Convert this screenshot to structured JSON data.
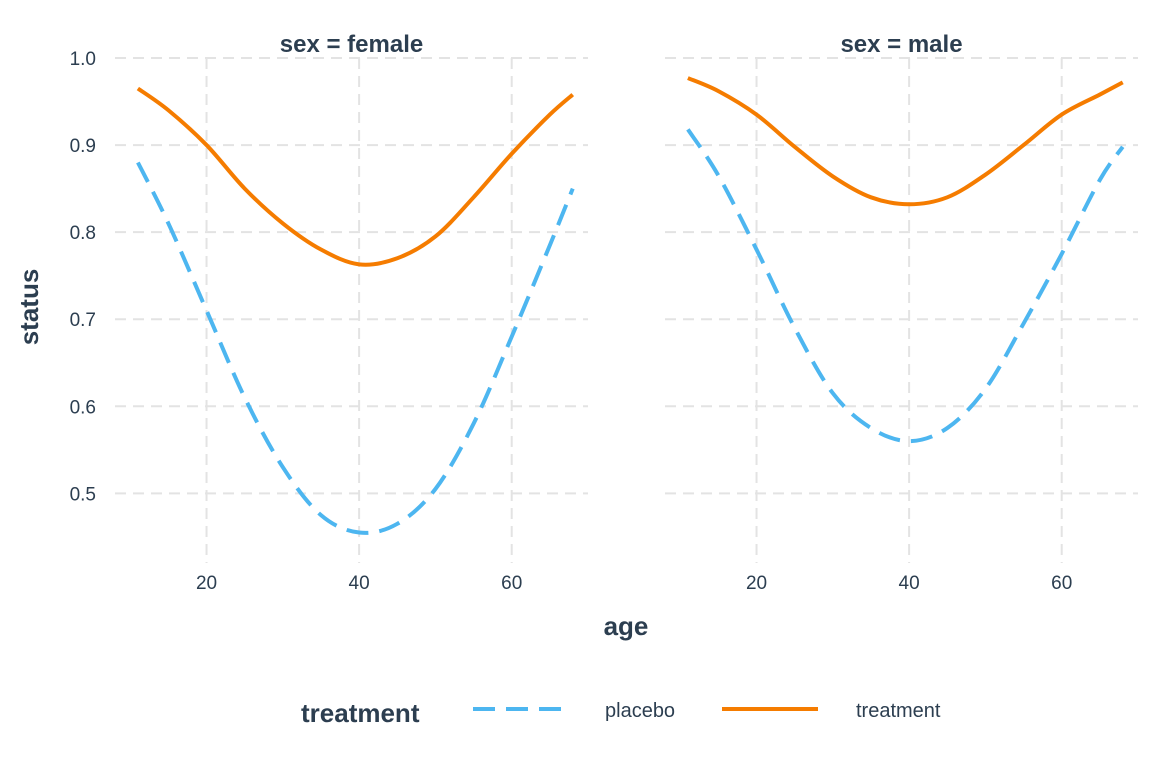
{
  "chart_data": {
    "type": "line",
    "facet_variable": "sex",
    "xlabel": "age",
    "ylabel": "status",
    "xlim": [
      8,
      70
    ],
    "ylim": [
      0.42,
      1.0
    ],
    "x_ticks": [
      20,
      40,
      60
    ],
    "y_ticks": [
      0.5,
      0.6,
      0.7,
      0.8,
      0.9,
      1.0
    ],
    "y_tick_labels": [
      "0.5",
      "0.6",
      "0.7",
      "0.8",
      "0.9",
      "1.0"
    ],
    "grid": true,
    "legend": {
      "title": "treatment",
      "position": "bottom",
      "entries": [
        {
          "label": "placebo",
          "color": "#4db6f0",
          "dash": "dashed"
        },
        {
          "label": "treatment",
          "color": "#f57c00",
          "dash": "solid"
        }
      ]
    },
    "panels": [
      {
        "title": "sex = female",
        "series": [
          {
            "name": "placebo",
            "color": "#4db6f0",
            "dash": "dashed",
            "x": [
              11,
              15,
              20,
              25,
              30,
              35,
              40,
              45,
              50,
              55,
              60,
              65,
              68
            ],
            "y": [
              0.88,
              0.81,
              0.71,
              0.61,
              0.53,
              0.475,
              0.455,
              0.465,
              0.505,
              0.58,
              0.68,
              0.785,
              0.85
            ]
          },
          {
            "name": "treatment",
            "color": "#f57c00",
            "dash": "solid",
            "x": [
              11,
              15,
              20,
              25,
              30,
              35,
              40,
              45,
              50,
              55,
              60,
              65,
              68
            ],
            "y": [
              0.965,
              0.94,
              0.9,
              0.85,
              0.81,
              0.78,
              0.763,
              0.77,
              0.795,
              0.84,
              0.89,
              0.935,
              0.958
            ]
          }
        ]
      },
      {
        "title": "sex = male",
        "series": [
          {
            "name": "placebo",
            "color": "#4db6f0",
            "dash": "dashed",
            "x": [
              11,
              15,
              20,
              25,
              30,
              35,
              40,
              45,
              50,
              55,
              60,
              65,
              68
            ],
            "y": [
              0.918,
              0.865,
              0.78,
              0.69,
              0.615,
              0.575,
              0.56,
              0.575,
              0.62,
              0.695,
              0.775,
              0.86,
              0.898
            ]
          },
          {
            "name": "treatment",
            "color": "#f57c00",
            "dash": "solid",
            "x": [
              11,
              15,
              20,
              25,
              30,
              35,
              40,
              45,
              50,
              55,
              60,
              65,
              68
            ],
            "y": [
              0.977,
              0.962,
              0.935,
              0.898,
              0.864,
              0.84,
              0.832,
              0.84,
              0.866,
              0.9,
              0.935,
              0.958,
              0.972
            ]
          }
        ]
      }
    ]
  }
}
